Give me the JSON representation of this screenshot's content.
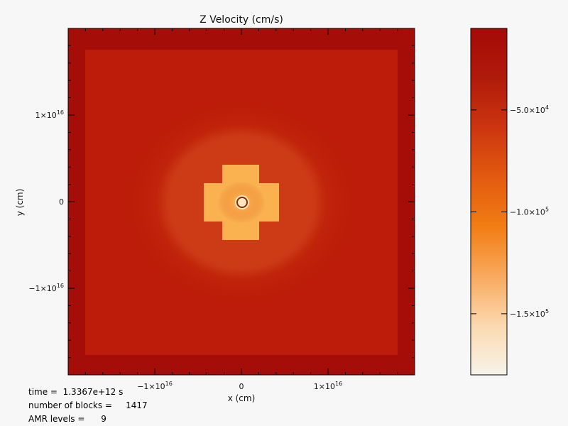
{
  "chart_data": {
    "type": "heatmap",
    "title": "Z Velocity (cm/s)",
    "xlabel": "x (cm)",
    "ylabel": "y (cm)",
    "xlim": [
      -2e+16,
      2e+16
    ],
    "ylim": [
      -2e+16,
      2e+16
    ],
    "x_ticks": [
      {
        "value": -1e+16,
        "label": "−1×10",
        "exp": "16"
      },
      {
        "value": 0,
        "label": "0",
        "exp": ""
      },
      {
        "value": 1e+16,
        "label": "1×10",
        "exp": "16"
      }
    ],
    "y_ticks": [
      {
        "value": 1e+16,
        "label": "1×10",
        "exp": "16"
      },
      {
        "value": 0,
        "label": "0",
        "exp": ""
      },
      {
        "value": -1e+16,
        "label": "−1×10",
        "exp": "16"
      }
    ],
    "colorbar": {
      "range": [
        -180000,
        -10000
      ],
      "ticks": [
        {
          "value": -50000,
          "label": "−5.0×10",
          "exp": "4"
        },
        {
          "value": -100000,
          "label": "−1.0×10",
          "exp": "5"
        },
        {
          "value": -150000,
          "label": "−1.5×10",
          "exp": "5"
        }
      ],
      "colors": [
        "#f7f3ea",
        "#fbd9b0",
        "#f8a95e",
        "#f27d14",
        "#e25a0f",
        "#cc3510",
        "#b01a0a",
        "#a50a08"
      ]
    },
    "colors": {
      "background": "#a50e08",
      "field": "#bc1c09",
      "mid": "#cc3a12",
      "inner": "#e0631d",
      "core": "#fab250",
      "sink_outer": "#ffe7c0",
      "sink_ring": "#8a2a00"
    }
  },
  "info": {
    "time": "time =  1.3367e+12 s",
    "blocks": "number of blocks =     1417",
    "amr": "AMR levels =      9"
  }
}
